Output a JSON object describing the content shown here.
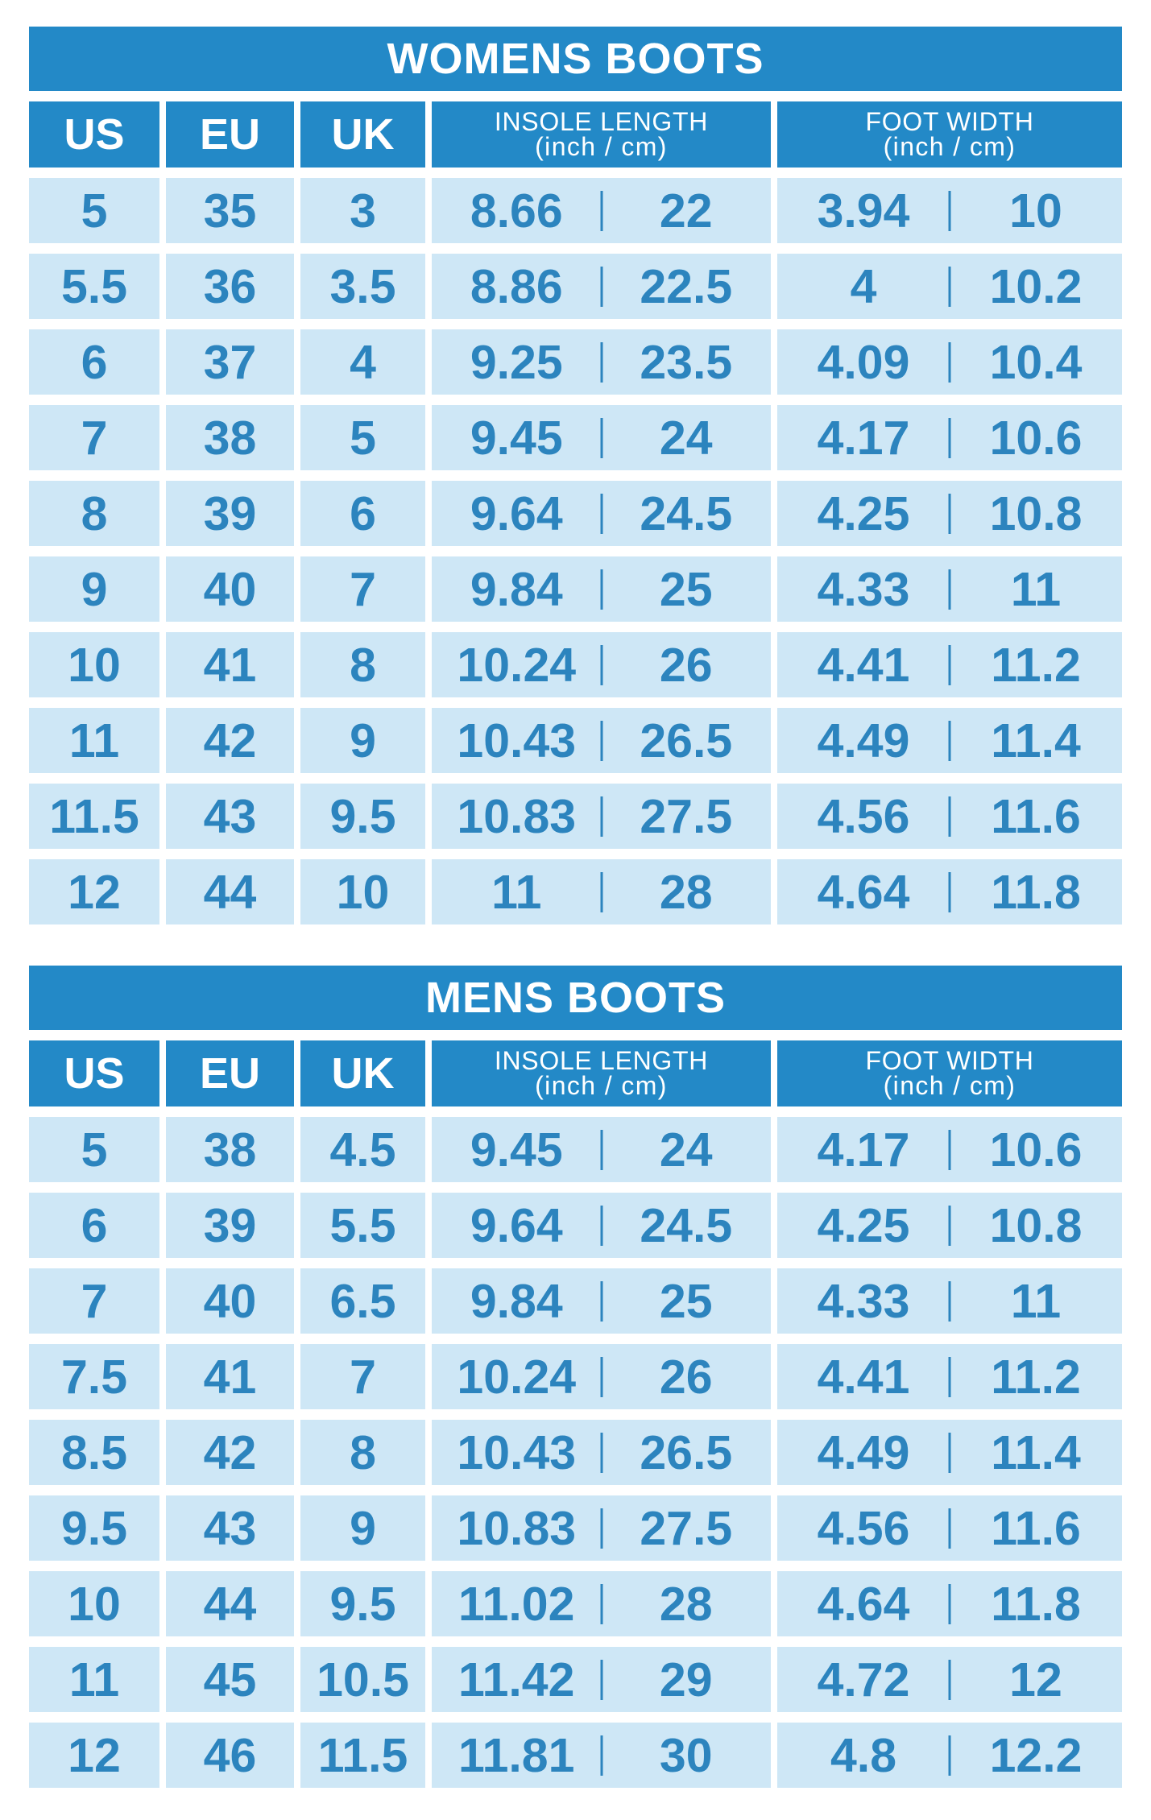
{
  "colors": {
    "page_bg": "#FFFFFF",
    "header_bg": "#2389C7",
    "header_text": "#FFFFFF",
    "cell_bg": "#CEE7F6",
    "cell_text": "#2C84BE"
  },
  "chart_data": [
    {
      "type": "table",
      "title": "WOMENS BOOTS",
      "columns": [
        {
          "label": "US"
        },
        {
          "label": "EU"
        },
        {
          "label": "UK"
        },
        {
          "label": "INSOLE LENGTH",
          "sub": "(inch / cm)"
        },
        {
          "label": "FOOT WIDTH",
          "sub": "(inch / cm)"
        }
      ],
      "rows": [
        [
          "5",
          "35",
          "3",
          [
            "8.66",
            "22"
          ],
          [
            "3.94",
            "10"
          ]
        ],
        [
          "5.5",
          "36",
          "3.5",
          [
            "8.86",
            "22.5"
          ],
          [
            "4",
            "10.2"
          ]
        ],
        [
          "6",
          "37",
          "4",
          [
            "9.25",
            "23.5"
          ],
          [
            "4.09",
            "10.4"
          ]
        ],
        [
          "7",
          "38",
          "5",
          [
            "9.45",
            "24"
          ],
          [
            "4.17",
            "10.6"
          ]
        ],
        [
          "8",
          "39",
          "6",
          [
            "9.64",
            "24.5"
          ],
          [
            "4.25",
            "10.8"
          ]
        ],
        [
          "9",
          "40",
          "7",
          [
            "9.84",
            "25"
          ],
          [
            "4.33",
            "11"
          ]
        ],
        [
          "10",
          "41",
          "8",
          [
            "10.24",
            "26"
          ],
          [
            "4.41",
            "11.2"
          ]
        ],
        [
          "11",
          "42",
          "9",
          [
            "10.43",
            "26.5"
          ],
          [
            "4.49",
            "11.4"
          ]
        ],
        [
          "11.5",
          "43",
          "9.5",
          [
            "10.83",
            "27.5"
          ],
          [
            "4.56",
            "11.6"
          ]
        ],
        [
          "12",
          "44",
          "10",
          [
            "11",
            "28"
          ],
          [
            "4.64",
            "11.8"
          ]
        ]
      ]
    },
    {
      "type": "table",
      "title": "MENS BOOTS",
      "columns": [
        {
          "label": "US"
        },
        {
          "label": "EU"
        },
        {
          "label": "UK"
        },
        {
          "label": "INSOLE LENGTH",
          "sub": "(inch / cm)"
        },
        {
          "label": "FOOT WIDTH",
          "sub": "(inch / cm)"
        }
      ],
      "rows": [
        [
          "5",
          "38",
          "4.5",
          [
            "9.45",
            "24"
          ],
          [
            "4.17",
            "10.6"
          ]
        ],
        [
          "6",
          "39",
          "5.5",
          [
            "9.64",
            "24.5"
          ],
          [
            "4.25",
            "10.8"
          ]
        ],
        [
          "7",
          "40",
          "6.5",
          [
            "9.84",
            "25"
          ],
          [
            "4.33",
            "11"
          ]
        ],
        [
          "7.5",
          "41",
          "7",
          [
            "10.24",
            "26"
          ],
          [
            "4.41",
            "11.2"
          ]
        ],
        [
          "8.5",
          "42",
          "8",
          [
            "10.43",
            "26.5"
          ],
          [
            "4.49",
            "11.4"
          ]
        ],
        [
          "9.5",
          "43",
          "9",
          [
            "10.83",
            "27.5"
          ],
          [
            "4.56",
            "11.6"
          ]
        ],
        [
          "10",
          "44",
          "9.5",
          [
            "11.02",
            "28"
          ],
          [
            "4.64",
            "11.8"
          ]
        ],
        [
          "11",
          "45",
          "10.5",
          [
            "11.42",
            "29"
          ],
          [
            "4.72",
            "12"
          ]
        ],
        [
          "12",
          "46",
          "11.5",
          [
            "11.81",
            "30"
          ],
          [
            "4.8",
            "12.2"
          ]
        ]
      ]
    }
  ]
}
